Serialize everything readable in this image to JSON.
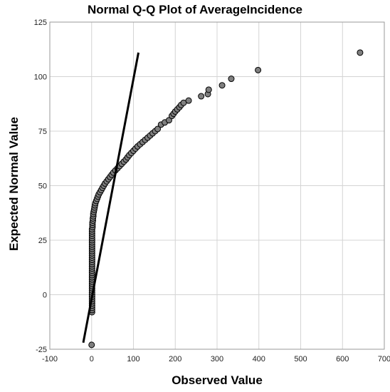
{
  "chart_data": {
    "type": "scatter",
    "title": "Normal Q-Q Plot of AverageIncidence",
    "xlabel": "Observed Value",
    "ylabel": "Expected Normal Value",
    "xlim": [
      -100,
      700
    ],
    "ylim": [
      -25,
      125
    ],
    "x_ticks": [
      -100,
      0,
      100,
      200,
      300,
      400,
      500,
      600,
      700
    ],
    "y_ticks": [
      -25,
      0,
      25,
      50,
      75,
      100,
      125
    ],
    "x_tick_labels": [
      "-100",
      "0",
      "100",
      "200",
      "300",
      "400",
      "500",
      "600",
      "700"
    ],
    "y_tick_labels": [
      "-25",
      "0",
      "25",
      "50",
      "75",
      "100",
      "125"
    ],
    "grid": true,
    "colors": {
      "point_fill": "#7f7f7f",
      "point_stroke": "#000000",
      "line": "#000000",
      "grid": "#d4d4d4"
    },
    "reference_line": {
      "x": [
        -20,
        112
      ],
      "y": [
        -22,
        111
      ]
    },
    "points": [
      [
        0,
        -23
      ],
      [
        1,
        -8
      ],
      [
        1,
        -7
      ],
      [
        1,
        -6
      ],
      [
        1,
        -5
      ],
      [
        1,
        -4
      ],
      [
        1,
        -3
      ],
      [
        1,
        -2
      ],
      [
        1,
        -1
      ],
      [
        1,
        0
      ],
      [
        1,
        1
      ],
      [
        1,
        2
      ],
      [
        1,
        3
      ],
      [
        1,
        4
      ],
      [
        1,
        5
      ],
      [
        1,
        6
      ],
      [
        1,
        7
      ],
      [
        1,
        8
      ],
      [
        1,
        9
      ],
      [
        1,
        10
      ],
      [
        1,
        11
      ],
      [
        1,
        12
      ],
      [
        1,
        13
      ],
      [
        1,
        14
      ],
      [
        1,
        15
      ],
      [
        1,
        16
      ],
      [
        1,
        17
      ],
      [
        1,
        18
      ],
      [
        1,
        19
      ],
      [
        1,
        20
      ],
      [
        1,
        21
      ],
      [
        1,
        22
      ],
      [
        1,
        23
      ],
      [
        1,
        24
      ],
      [
        1,
        25
      ],
      [
        1,
        26
      ],
      [
        1,
        27
      ],
      [
        1,
        28
      ],
      [
        1,
        29
      ],
      [
        1,
        30
      ],
      [
        2,
        31
      ],
      [
        2,
        32
      ],
      [
        2,
        33
      ],
      [
        3,
        34
      ],
      [
        3,
        35
      ],
      [
        4,
        36
      ],
      [
        4,
        37
      ],
      [
        5,
        38
      ],
      [
        6,
        39
      ],
      [
        7,
        40
      ],
      [
        8,
        41
      ],
      [
        9,
        42
      ],
      [
        11,
        43
      ],
      [
        13,
        44
      ],
      [
        15,
        45
      ],
      [
        17,
        46
      ],
      [
        20,
        47
      ],
      [
        23,
        48
      ],
      [
        26,
        49
      ],
      [
        29,
        50
      ],
      [
        32,
        51
      ],
      [
        36,
        52
      ],
      [
        40,
        53
      ],
      [
        44,
        54
      ],
      [
        48,
        55
      ],
      [
        52,
        56
      ],
      [
        57,
        57
      ],
      [
        62,
        58
      ],
      [
        67,
        59
      ],
      [
        72,
        60
      ],
      [
        77,
        61
      ],
      [
        82,
        62
      ],
      [
        86,
        63
      ],
      [
        90,
        64
      ],
      [
        95,
        65
      ],
      [
        100,
        66
      ],
      [
        105,
        67
      ],
      [
        110,
        68
      ],
      [
        116,
        69
      ],
      [
        122,
        70
      ],
      [
        128,
        71
      ],
      [
        134,
        72
      ],
      [
        140,
        73
      ],
      [
        146,
        74
      ],
      [
        152,
        75
      ],
      [
        158,
        76
      ],
      [
        166,
        78
      ],
      [
        175,
        79
      ],
      [
        185,
        80
      ],
      [
        192,
        82
      ],
      [
        196,
        83
      ],
      [
        200,
        84
      ],
      [
        205,
        85
      ],
      [
        210,
        86
      ],
      [
        214,
        87
      ],
      [
        220,
        88
      ],
      [
        232,
        89
      ],
      [
        262,
        91
      ],
      [
        278,
        92
      ],
      [
        280,
        94
      ],
      [
        312,
        96
      ],
      [
        334,
        99
      ],
      [
        398,
        103
      ],
      [
        642,
        111
      ]
    ]
  }
}
